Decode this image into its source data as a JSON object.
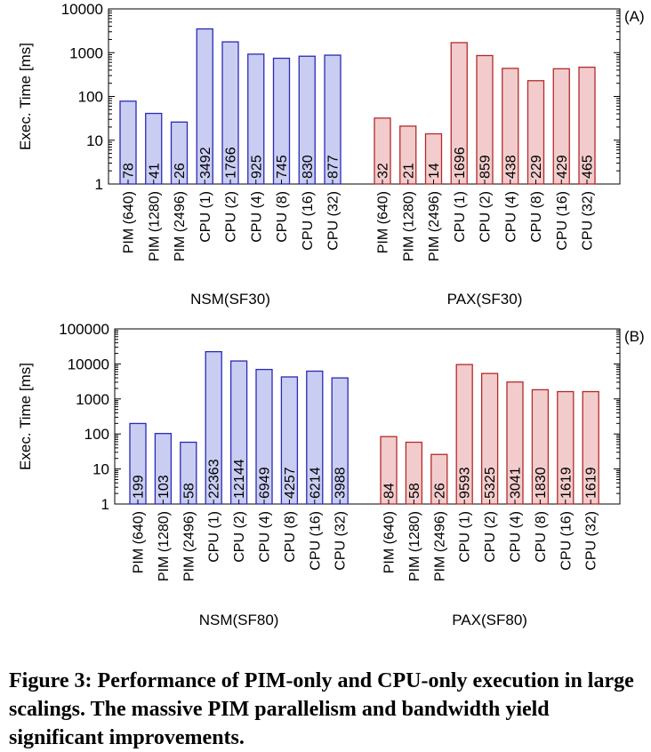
{
  "chart_data": [
    {
      "type": "bar",
      "panel_label": "(A)",
      "ylabel": "Exec. Time [ms]",
      "yscale": "log",
      "ylim": [
        1,
        10000
      ],
      "yticks": [
        "1",
        "10",
        "100",
        "1000",
        "10000"
      ],
      "groups": [
        {
          "name": "NSM(SF30)",
          "color": "#c9cdf2",
          "edge": "#2a2ab5",
          "categories": [
            "PIM (640)",
            "PIM (1280)",
            "PIM (2496)",
            "CPU (1)",
            "CPU (2)",
            "CPU (4)",
            "CPU (8)",
            "CPU (16)",
            "CPU (32)"
          ],
          "values": [
            78,
            41,
            26,
            3492,
            1766,
            925,
            745,
            830,
            877
          ],
          "labels": [
            "78",
            "41",
            "26",
            "3492",
            "1766",
            "925",
            "745",
            "830",
            "877"
          ]
        },
        {
          "name": "PAX(SF30)",
          "color": "#f2cccc",
          "edge": "#b52a2a",
          "categories": [
            "PIM (640)",
            "PIM (1280)",
            "PIM (2496)",
            "CPU (1)",
            "CPU (2)",
            "CPU (4)",
            "CPU (8)",
            "CPU (16)",
            "CPU (32)"
          ],
          "values": [
            32,
            21,
            14,
            1696,
            859,
            438,
            229,
            429,
            465
          ],
          "labels": [
            "32",
            "21",
            "14",
            "1696",
            "859",
            "438",
            "229",
            "429",
            "465"
          ]
        }
      ]
    },
    {
      "type": "bar",
      "panel_label": "(B)",
      "ylabel": "Exec. Time [ms]",
      "yscale": "log",
      "ylim": [
        1,
        100000
      ],
      "yticks": [
        "1",
        "10",
        "100",
        "1000",
        "10000",
        "100000"
      ],
      "groups": [
        {
          "name": "NSM(SF80)",
          "color": "#c9cdf2",
          "edge": "#2a2ab5",
          "categories": [
            "PIM (640)",
            "PIM (1280)",
            "PIM (2496)",
            "CPU (1)",
            "CPU (2)",
            "CPU (4)",
            "CPU (8)",
            "CPU (16)",
            "CPU (32)"
          ],
          "values": [
            199,
            103,
            58,
            22363,
            12144,
            6949,
            4257,
            6214,
            3988
          ],
          "labels": [
            "199",
            "103",
            "58",
            "22363",
            "12144",
            "6949",
            "4257",
            "6214",
            "3988"
          ]
        },
        {
          "name": "PAX(SF80)",
          "color": "#f2cccc",
          "edge": "#b52a2a",
          "categories": [
            "PIM (640)",
            "PIM (1280)",
            "PIM (2496)",
            "CPU (1)",
            "CPU (2)",
            "CPU (4)",
            "CPU (8)",
            "CPU (16)",
            "CPU (32)"
          ],
          "values": [
            84,
            58,
            26,
            9593,
            5325,
            3041,
            1830,
            1619,
            1619
          ],
          "labels": [
            "84",
            "58",
            "26",
            "9593",
            "5325",
            "3041",
            "1830",
            "1619",
            "1619"
          ]
        }
      ]
    }
  ],
  "caption": "Figure 3: Performance of PIM-only and CPU-only execution in large scalings. The massive PIM parallelism and bandwidth yield significant improvements."
}
